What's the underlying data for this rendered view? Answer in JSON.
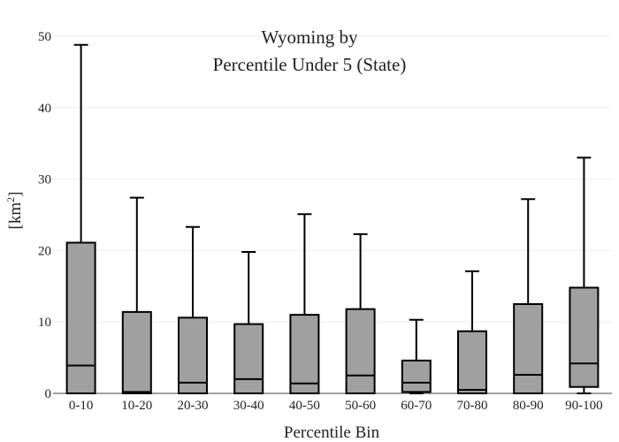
{
  "chart_data": {
    "type": "box",
    "title_line1": "Wyoming  by",
    "title_line2": "Percentile Under 5 (State)",
    "xlabel": "Percentile Bin",
    "ylabel_base": "[km",
    "ylabel_sup": "2",
    "ylabel_end": "]",
    "ylim": [
      0,
      50
    ],
    "yticks": [
      0,
      10,
      20,
      30,
      40,
      50
    ],
    "grid": true,
    "box_color": "#a0a0a0",
    "categories": [
      "0-10",
      "10-20",
      "20-30",
      "30-40",
      "40-50",
      "50-60",
      "60-70",
      "70-80",
      "80-90",
      "90-100"
    ],
    "boxes": [
      {
        "low": 0,
        "q1": 0,
        "median": 3.9,
        "q3": 21.1,
        "high": 48.8
      },
      {
        "low": 0,
        "q1": 0,
        "median": 0.2,
        "q3": 11.4,
        "high": 27.4
      },
      {
        "low": 0,
        "q1": 0,
        "median": 1.5,
        "q3": 10.6,
        "high": 23.3
      },
      {
        "low": 0,
        "q1": 0,
        "median": 2.0,
        "q3": 9.7,
        "high": 19.8
      },
      {
        "low": 0,
        "q1": 0,
        "median": 1.4,
        "q3": 11.0,
        "high": 25.1
      },
      {
        "low": 0,
        "q1": 0,
        "median": 2.5,
        "q3": 11.8,
        "high": 22.3
      },
      {
        "low": 0,
        "q1": 0.2,
        "median": 1.5,
        "q3": 4.6,
        "high": 10.3
      },
      {
        "low": 0,
        "q1": 0,
        "median": 0.5,
        "q3": 8.7,
        "high": 17.1
      },
      {
        "low": 0,
        "q1": 0,
        "median": 2.6,
        "q3": 12.5,
        "high": 27.2
      },
      {
        "low": 0,
        "q1": 0.9,
        "median": 4.2,
        "q3": 14.8,
        "high": 33.0
      }
    ]
  }
}
